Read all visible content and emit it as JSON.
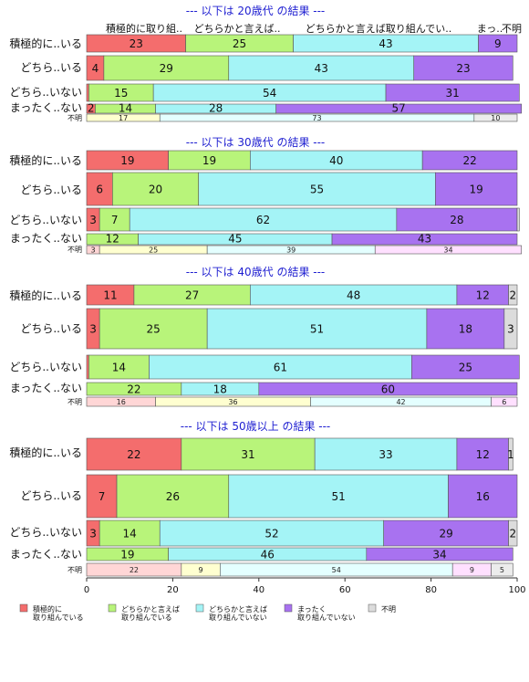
{
  "chart_data": {
    "type": "bar",
    "orientation": "horizontal-stacked",
    "xlim": [
      0,
      100
    ],
    "xticks": [
      "0",
      "20",
      "40",
      "60",
      "80",
      "100"
    ],
    "column_headers": [
      "積極的に取り組..",
      "どちらかと言えば..",
      "どちらかと言えば取り組んでい..",
      "まっ..",
      "不明"
    ],
    "row_labels": [
      "積極的に..いる",
      "どちら..いる",
      "どちら..いない",
      "まったく..ない",
      "不明"
    ],
    "legend": {
      "position": "bottom",
      "entries": [
        {
          "line1": "積極的に",
          "line2": "取り組んでいる",
          "color": "#f46d6d"
        },
        {
          "line1": "どちらかと言えば",
          "line2": "取り組んでいる",
          "color": "#b8f47a"
        },
        {
          "line1": "どちらかと言えば",
          "line2": "取り組んでいない",
          "color": "#a4f4f6"
        },
        {
          "line1": "まったく",
          "line2": "取り組んでいない",
          "color": "#a872f0"
        },
        {
          "line1": "不明",
          "line2": "",
          "color": "#dcdcdc"
        }
      ]
    },
    "panels": [
      {
        "title": "--- 以下は 20歳代 の結果 ---",
        "rows": [
          {
            "values": [
              23,
              25,
              43,
              9,
              0
            ]
          },
          {
            "values": [
              4,
              29,
              43,
              23,
              0
            ]
          },
          {
            "values": [
              0.5,
              15,
              54,
              31,
              0
            ]
          },
          {
            "values": [
              2,
              14,
              28,
              57,
              0
            ]
          },
          {
            "values": [
              0,
              17,
              73,
              0,
              10
            ]
          }
        ]
      },
      {
        "title": "--- 以下は 30歳代 の結果 ---",
        "rows": [
          {
            "values": [
              19,
              19,
              40,
              22,
              0
            ]
          },
          {
            "values": [
              6,
              20,
              55,
              19,
              0
            ]
          },
          {
            "values": [
              3,
              7,
              62,
              28,
              0.5
            ]
          },
          {
            "values": [
              0,
              12,
              45,
              43,
              0
            ]
          },
          {
            "values": [
              3,
              25,
              39,
              34,
              0
            ]
          }
        ]
      },
      {
        "title": "--- 以下は 40歳代 の結果 ---",
        "rows": [
          {
            "values": [
              11,
              27,
              48,
              12,
              2
            ]
          },
          {
            "values": [
              3,
              25,
              51,
              18,
              3
            ]
          },
          {
            "values": [
              0.5,
              14,
              61,
              25,
              0
            ]
          },
          {
            "values": [
              0,
              22,
              18,
              60,
              0
            ]
          },
          {
            "values": [
              16,
              36,
              42,
              6,
              0
            ]
          }
        ]
      },
      {
        "title": "--- 以下は 50歳以上 の結果 ---",
        "rows": [
          {
            "values": [
              22,
              31,
              33,
              12,
              1
            ]
          },
          {
            "values": [
              7,
              26,
              51,
              16,
              0
            ]
          },
          {
            "values": [
              3,
              14,
              52,
              29,
              2
            ]
          },
          {
            "values": [
              0,
              19,
              46,
              34,
              0
            ]
          },
          {
            "values": [
              22,
              9,
              54,
              9,
              5
            ]
          }
        ]
      }
    ]
  }
}
